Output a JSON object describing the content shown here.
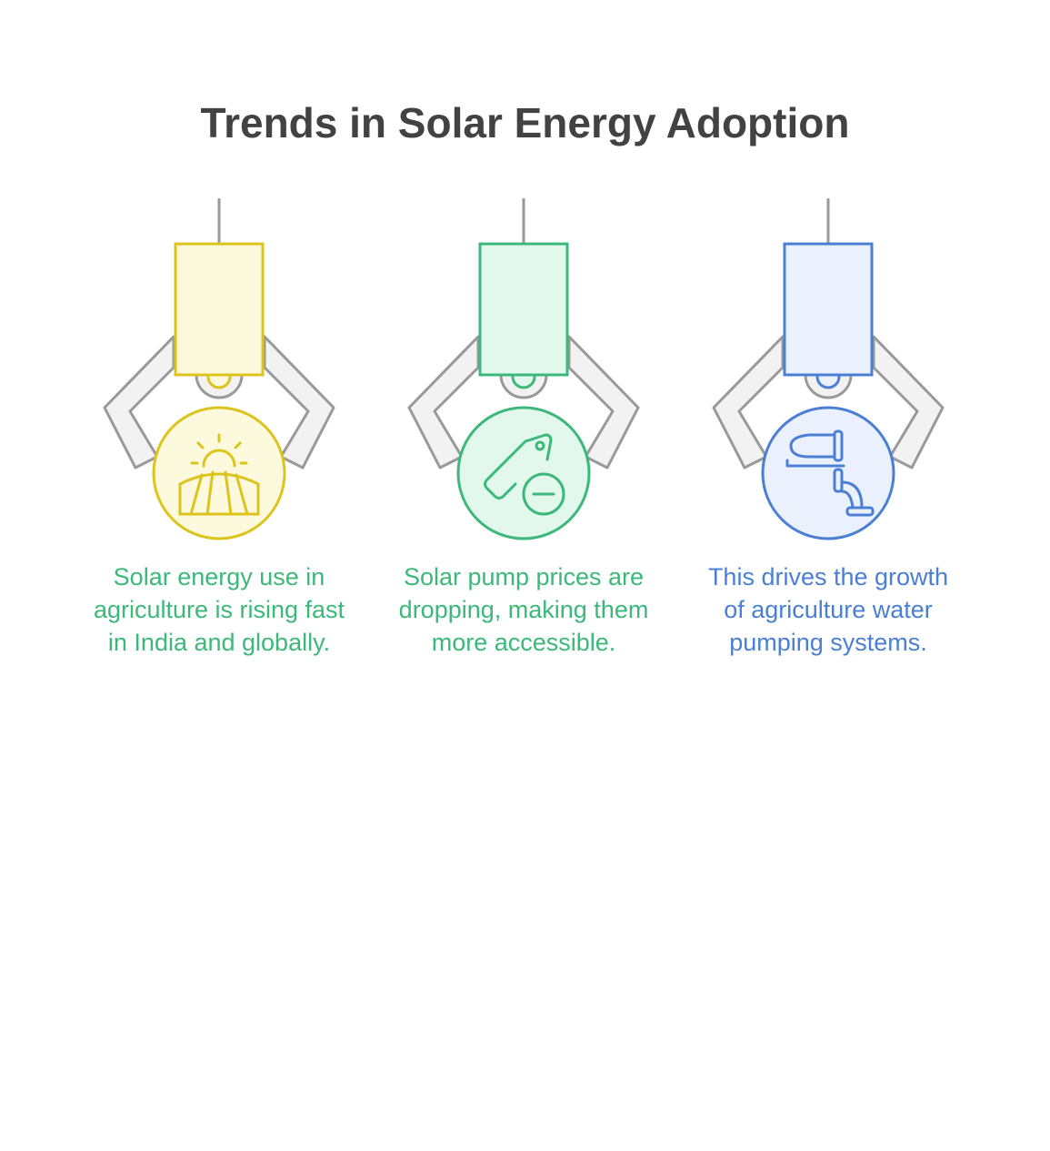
{
  "title": "Trends in Solar Energy Adoption",
  "items": [
    {
      "text": "Solar energy use in agriculture is rising fast in India and globally."
    },
    {
      "text": "Solar pump prices are dropping, making them more accessible."
    },
    {
      "text": "This drives the growth of agriculture water pumping systems."
    }
  ]
}
